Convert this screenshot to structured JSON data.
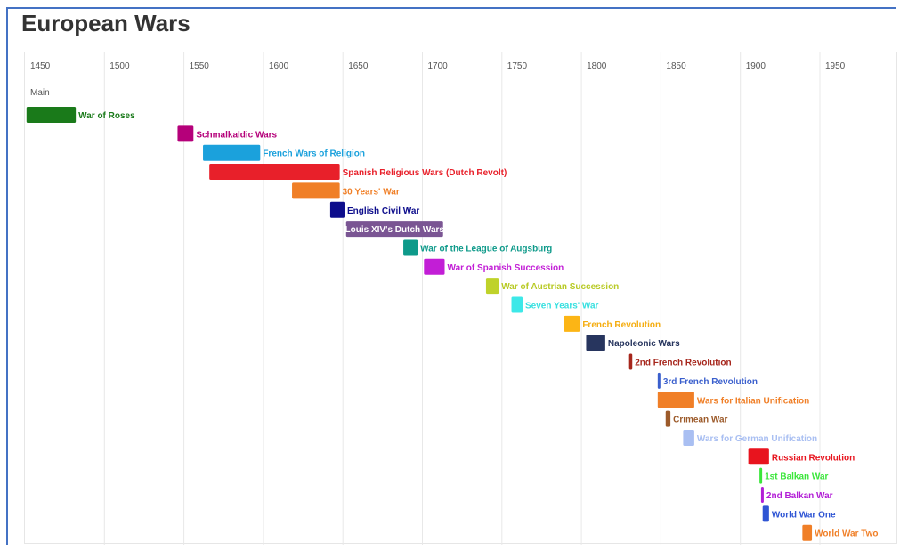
{
  "title": "European Wars",
  "chart_data": {
    "type": "timeline",
    "title": "European Wars",
    "group_label": "Main",
    "xlim": [
      1450,
      2005
    ],
    "ticks": [
      1450,
      1500,
      1550,
      1600,
      1650,
      1700,
      1750,
      1800,
      1850,
      1900,
      1950
    ],
    "grid": true,
    "events": [
      {
        "label": "War of Roses",
        "start": 1451,
        "end": 1482,
        "color": "#1a7a1a",
        "label_color": "#1a7a1a",
        "label_inside": false
      },
      {
        "label": "Schmalkaldic Wars",
        "start": 1546,
        "end": 1556,
        "color": "#b5007a",
        "label_color": "#b5007a",
        "label_inside": false
      },
      {
        "label": "French Wars of Religion",
        "start": 1562,
        "end": 1598,
        "color": "#1ba1dc",
        "label_color": "#1ba1dc",
        "label_inside": false
      },
      {
        "label": "Spanish Religious Wars (Dutch Revolt)",
        "start": 1566,
        "end": 1648,
        "color": "#e8202a",
        "label_color": "#e8202a",
        "label_inside": false
      },
      {
        "label": "30 Years' War",
        "start": 1618,
        "end": 1648,
        "color": "#f07f27",
        "label_color": "#f07f27",
        "label_inside": false
      },
      {
        "label": "English Civil War",
        "start": 1642,
        "end": 1651,
        "color": "#0d0d8c",
        "label_color": "#0d0d8c",
        "label_inside": false
      },
      {
        "label": "Louis XIV's Dutch Wars",
        "start": 1652,
        "end": 1713,
        "color": "#7a5593",
        "label_color": "#ffffff",
        "label_inside": true
      },
      {
        "label": "War of the League of Augsburg",
        "start": 1688,
        "end": 1697,
        "color": "#0e9a8a",
        "label_color": "#0e9a8a",
        "label_inside": false
      },
      {
        "label": "War of Spanish Succession",
        "start": 1701,
        "end": 1714,
        "color": "#c21ed6",
        "label_color": "#c21ed6",
        "label_inside": false
      },
      {
        "label": "War of Austrian Succession",
        "start": 1740,
        "end": 1748,
        "color": "#bfd22a",
        "label_color": "#b8ca25",
        "label_inside": false
      },
      {
        "label": "Seven Years' War",
        "start": 1756,
        "end": 1763,
        "color": "#3de8e8",
        "label_color": "#38e0e0",
        "label_inside": false
      },
      {
        "label": "French Revolution",
        "start": 1789,
        "end": 1799,
        "color": "#fcb515",
        "label_color": "#f5ad10",
        "label_inside": false
      },
      {
        "label": "Napoleonic Wars",
        "start": 1803,
        "end": 1815,
        "color": "#27355e",
        "label_color": "#27355e",
        "label_inside": false
      },
      {
        "label": "2nd French Revolution",
        "start": 1830,
        "end": 1832,
        "color": "#a6261c",
        "label_color": "#a6261c",
        "label_inside": false
      },
      {
        "label": "3rd French Revolution",
        "start": 1848,
        "end": 1849,
        "color": "#3a5fcd",
        "label_color": "#3a5fcd",
        "label_inside": false
      },
      {
        "label": "Wars for Italian Unification",
        "start": 1848,
        "end": 1871,
        "color": "#f07f27",
        "label_color": "#f07f27",
        "label_inside": false
      },
      {
        "label": "Crimean War",
        "start": 1853,
        "end": 1856,
        "color": "#9c5a2a",
        "label_color": "#9c5a2a",
        "label_inside": false
      },
      {
        "label": "Wars for German Unification",
        "start": 1864,
        "end": 1871,
        "color": "#a9bff2",
        "label_color": "#a9bff2",
        "label_inside": false
      },
      {
        "label": "Russian Revolution",
        "start": 1905,
        "end": 1918,
        "color": "#e8141e",
        "label_color": "#e8141e",
        "label_inside": false
      },
      {
        "label": "1st Balkan War",
        "start": 1912,
        "end": 1913,
        "color": "#3ae63a",
        "label_color": "#3ae63a",
        "label_inside": false
      },
      {
        "label": "2nd Balkan War",
        "start": 1913,
        "end": 1914,
        "color": "#b21ed6",
        "label_color": "#b21ed6",
        "label_inside": false
      },
      {
        "label": "World War One",
        "start": 1914,
        "end": 1918,
        "color": "#2f55d4",
        "label_color": "#2f55d4",
        "label_inside": false
      },
      {
        "label": "World War Two",
        "start": 1939,
        "end": 1945,
        "color": "#f07f27",
        "label_color": "#f07f27",
        "label_inside": false
      }
    ]
  }
}
